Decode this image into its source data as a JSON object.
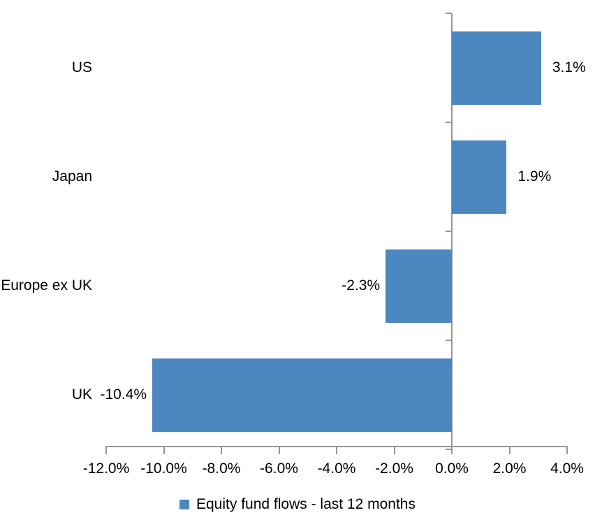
{
  "chart_data": {
    "type": "bar",
    "orientation": "horizontal",
    "title": "",
    "categories": [
      "US",
      "Japan",
      "Europe ex UK",
      "UK"
    ],
    "series": [
      {
        "name": "Equity fund flows - last 12 months",
        "values": [
          3.1,
          1.9,
          -2.3,
          -10.4
        ],
        "value_labels": [
          "3.1%",
          "1.9%",
          "-2.3%",
          "-10.4%"
        ]
      }
    ],
    "xlabel": "",
    "ylabel": "",
    "xlim": [
      -12.0,
      4.0
    ],
    "x_ticks": [
      -12,
      -10,
      -8,
      -6,
      -4,
      -2,
      0,
      2,
      4
    ],
    "x_tick_labels": [
      "-12.0%",
      "-10.0%",
      "-8.0%",
      "-6.0%",
      "-4.0%",
      "-2.0%",
      "0.0%",
      "2.0%",
      "4.0%"
    ],
    "grid": "off",
    "zero_line": true,
    "legend_position": "bottom-center",
    "legend": {
      "label": "Equity fund flows - last 12 months"
    },
    "colors": {
      "bar": "#4D87C0",
      "axis": "#969696",
      "text": "#000000",
      "background": "#ffffff"
    }
  }
}
